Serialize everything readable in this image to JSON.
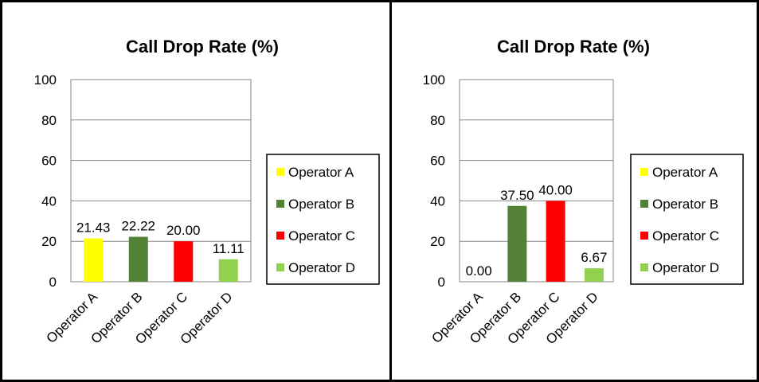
{
  "chart_data": [
    {
      "type": "bar",
      "title": "Call Drop Rate (%)",
      "categories": [
        "Operator A",
        "Operator B",
        "Operator C",
        "Operator D"
      ],
      "values": [
        21.43,
        22.22,
        20.0,
        11.11
      ],
      "value_labels": [
        "21.43",
        "22.22",
        "20.00",
        "11.11"
      ],
      "colors": [
        "#ffff00",
        "#538135",
        "#ff0000",
        "#92d050"
      ],
      "ylim": [
        0,
        100
      ],
      "yticks": [
        0,
        20,
        40,
        60,
        80,
        100
      ],
      "grid": true,
      "legend": {
        "position": "right",
        "entries": [
          "Operator A",
          "Operator B",
          "Operator C",
          "Operator D"
        ]
      }
    },
    {
      "type": "bar",
      "title": "Call Drop Rate (%)",
      "categories": [
        "Operator A",
        "Operator B",
        "Operator C",
        "Operator D"
      ],
      "values": [
        0.0,
        37.5,
        40.0,
        6.67
      ],
      "value_labels": [
        "0.00",
        "37.50",
        "40.00",
        "6.67"
      ],
      "colors": [
        "#ffff00",
        "#538135",
        "#ff0000",
        "#92d050"
      ],
      "ylim": [
        0,
        100
      ],
      "yticks": [
        0,
        20,
        40,
        60,
        80,
        100
      ],
      "grid": true,
      "legend": {
        "position": "right",
        "entries": [
          "Operator A",
          "Operator B",
          "Operator C",
          "Operator D"
        ]
      }
    }
  ]
}
